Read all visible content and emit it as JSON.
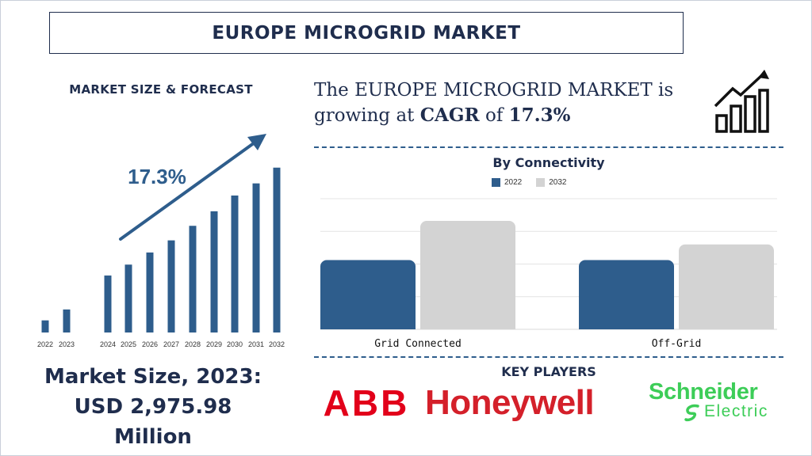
{
  "title": "EUROPE MICROGRID MARKET",
  "forecast": {
    "label": "MARKET SIZE & FORECAST",
    "cagr_label": "17.3%"
  },
  "market_size": {
    "line1": "Market Size, 2023:",
    "line2": "USD 2,975.98",
    "line3": "Million"
  },
  "cagr_statement": {
    "prefix": "The EUROPE MICROGRID MARKET is growing at ",
    "cagr_word": "CAGR",
    "middle": " of ",
    "value": "17.3%"
  },
  "connectivity": {
    "title": "By Connectivity"
  },
  "key_players": {
    "title": "KEY PLAYERS",
    "abb": "ABB",
    "honeywell": "Honeywell",
    "schneider_1": "Schneider",
    "schneider_2": "Electric"
  },
  "colors": {
    "navy": "#1f2d4d",
    "bar_blue": "#2e5d8c",
    "bar_grey": "#d3d3d3",
    "abb_red": "#e2001a",
    "honeywell_red": "#d4202a",
    "schneider_green": "#3dcd58"
  },
  "chart_data": [
    {
      "type": "bar",
      "categories": [
        "2022",
        "2023",
        "2024",
        "2025",
        "2026",
        "2027",
        "2028",
        "2029",
        "2030",
        "2031",
        "2032"
      ],
      "values": [
        1.0,
        1.9,
        4.7,
        5.6,
        6.6,
        7.6,
        8.8,
        10.0,
        11.3,
        12.3,
        13.6
      ],
      "annotation": "17.3%",
      "ylim": [
        0,
        16
      ],
      "grid": false
    },
    {
      "type": "bar",
      "title": "By Connectivity",
      "categories": [
        "Grid Connected",
        "Off-Grid"
      ],
      "series": [
        {
          "name": "2022",
          "values": [
            53,
            53
          ]
        },
        {
          "name": "2032",
          "values": [
            83,
            65
          ]
        }
      ],
      "ylim": [
        0,
        100
      ],
      "grid": true,
      "legend": "top-center"
    }
  ]
}
